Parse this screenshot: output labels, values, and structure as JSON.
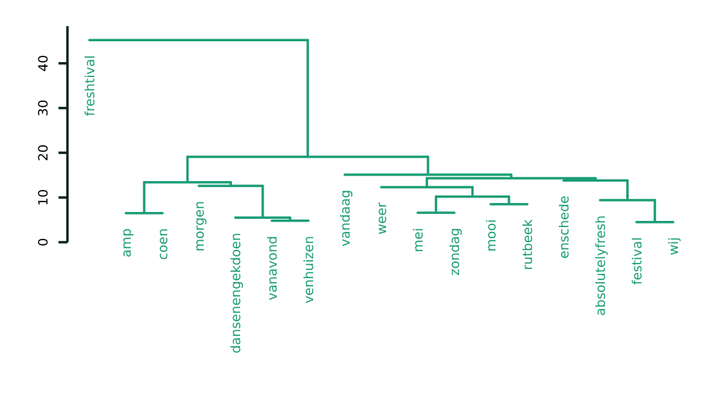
{
  "chart_data": {
    "type": "dendrogram",
    "title": "",
    "xlabel": "",
    "ylabel": "",
    "ylim": [
      0,
      48.3
    ],
    "yticks": [
      0,
      10,
      20,
      30,
      40
    ],
    "line_color": "#1b9e77",
    "leaves": [
      "freshtival",
      "amp",
      "coen",
      "morgen",
      "dansenengekdoen",
      "vanavond",
      "venhuizen",
      "vandaag",
      "weer",
      "mei",
      "zondag",
      "mooi",
      "rutbeek",
      "enschede",
      "absolutelyfresh",
      "festival",
      "wij"
    ],
    "tree": {
      "h": 45.2,
      "c": [
        "freshtival",
        {
          "h": 19.1,
          "c": [
            {
              "h": 13.4,
              "c": [
                {
                  "h": 6.5,
                  "c": [
                    "amp",
                    "coen"
                  ]
                },
                {
                  "h": 12.6,
                  "c": [
                    "morgen",
                    {
                      "h": 5.5,
                      "c": [
                        "dansenengekdoen",
                        {
                          "h": 4.8,
                          "c": [
                            "vanavond",
                            "venhuizen"
                          ]
                        }
                      ]
                    }
                  ]
                }
              ]
            },
            {
              "h": 15.1,
              "c": [
                "vandaag",
                {
                  "h": 14.3,
                  "c": [
                    {
                      "h": 12.3,
                      "c": [
                        "weer",
                        {
                          "h": 10.2,
                          "c": [
                            {
                              "h": 6.6,
                              "c": [
                                "mei",
                                "zondag"
                              ]
                            },
                            {
                              "h": 8.5,
                              "c": [
                                "mooi",
                                "rutbeek"
                              ]
                            }
                          ]
                        }
                      ]
                    },
                    {
                      "h": 13.8,
                      "c": [
                        "enschede",
                        {
                          "h": 9.4,
                          "c": [
                            "absolutelyfresh",
                            {
                              "h": 4.5,
                              "c": [
                                "festival",
                                "wij"
                              ]
                            }
                          ]
                        }
                      ]
                    }
                  ]
                }
              ]
            }
          ]
        }
      ]
    }
  }
}
